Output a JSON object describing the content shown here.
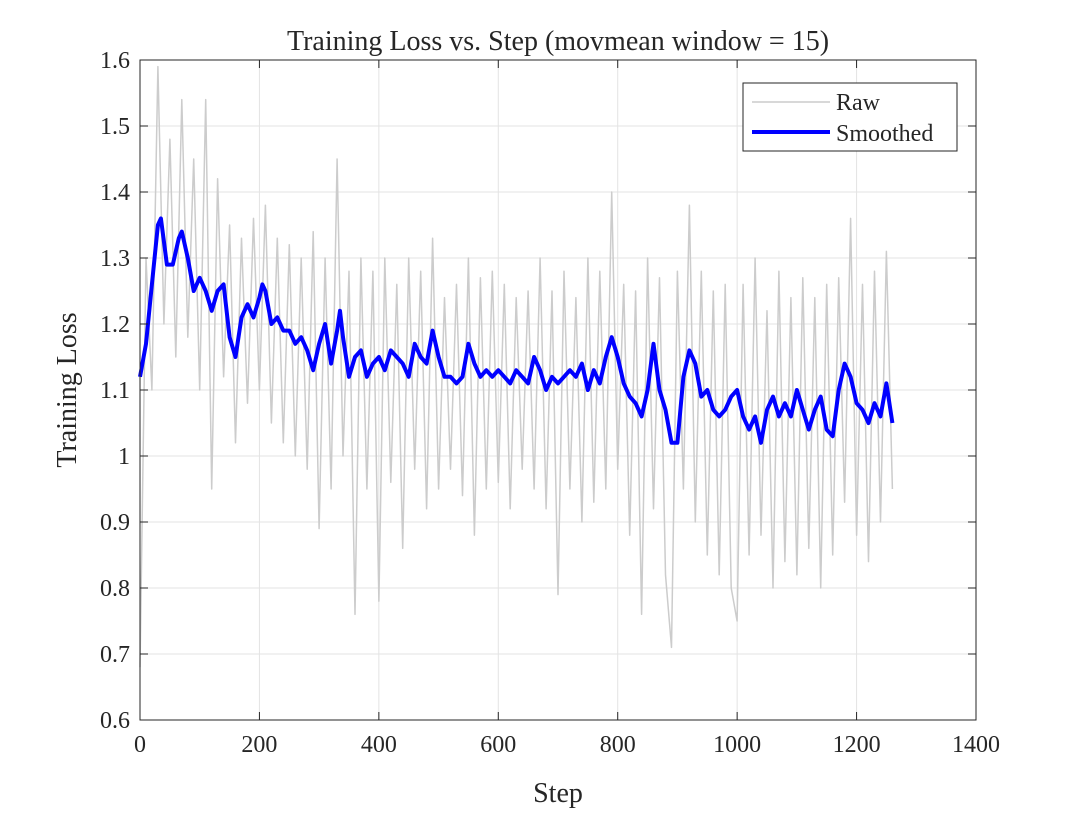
{
  "chart_data": {
    "type": "line",
    "title": "Training Loss vs. Step (movmean window = 15)",
    "xlabel": "Step",
    "ylabel": "Training Loss",
    "xlim": [
      0,
      1400
    ],
    "ylim": [
      0.6,
      1.6
    ],
    "xticks": [
      0,
      200,
      400,
      600,
      800,
      1000,
      1200,
      1400
    ],
    "yticks": [
      0.6,
      0.7,
      0.8,
      0.9,
      1,
      1.1,
      1.2,
      1.3,
      1.4,
      1.5,
      1.6
    ],
    "grid": true,
    "legend_placement": "top-right",
    "series": [
      {
        "name": "Raw",
        "color": "#cccccc",
        "x": [
          0,
          10,
          20,
          30,
          40,
          50,
          60,
          70,
          80,
          90,
          100,
          110,
          120,
          130,
          140,
          150,
          160,
          170,
          180,
          190,
          200,
          210,
          220,
          230,
          240,
          250,
          260,
          270,
          280,
          290,
          300,
          310,
          320,
          330,
          340,
          350,
          360,
          370,
          380,
          390,
          400,
          410,
          420,
          430,
          440,
          450,
          460,
          470,
          480,
          490,
          500,
          510,
          520,
          530,
          540,
          550,
          560,
          570,
          580,
          590,
          600,
          610,
          620,
          630,
          640,
          650,
          660,
          670,
          680,
          690,
          700,
          710,
          720,
          730,
          740,
          750,
          760,
          770,
          780,
          790,
          800,
          810,
          820,
          830,
          840,
          850,
          860,
          870,
          880,
          890,
          900,
          910,
          920,
          930,
          940,
          950,
          960,
          970,
          980,
          990,
          1000,
          1010,
          1020,
          1030,
          1040,
          1050,
          1060,
          1070,
          1080,
          1090,
          1100,
          1110,
          1120,
          1130,
          1140,
          1150,
          1160,
          1170,
          1180,
          1190,
          1200,
          1210,
          1220,
          1230,
          1240,
          1250,
          1260
        ],
        "y": [
          0.68,
          1.3,
          1.1,
          1.59,
          1.2,
          1.48,
          1.15,
          1.54,
          1.18,
          1.45,
          1.1,
          1.54,
          0.95,
          1.42,
          1.12,
          1.35,
          1.02,
          1.33,
          1.08,
          1.36,
          1.1,
          1.38,
          1.05,
          1.33,
          1.02,
          1.32,
          1.0,
          1.3,
          0.98,
          1.34,
          0.89,
          1.3,
          0.95,
          1.45,
          1.0,
          1.28,
          0.76,
          1.3,
          0.95,
          1.28,
          0.78,
          1.3,
          0.96,
          1.26,
          0.86,
          1.3,
          0.98,
          1.28,
          0.92,
          1.33,
          0.95,
          1.24,
          0.98,
          1.26,
          0.94,
          1.3,
          0.88,
          1.27,
          0.95,
          1.28,
          0.96,
          1.26,
          0.92,
          1.24,
          0.98,
          1.25,
          0.95,
          1.3,
          0.92,
          1.25,
          0.79,
          1.28,
          0.95,
          1.24,
          0.9,
          1.3,
          0.93,
          1.28,
          0.95,
          1.4,
          0.98,
          1.26,
          0.88,
          1.25,
          0.76,
          1.3,
          0.92,
          1.27,
          0.82,
          0.71,
          1.28,
          0.95,
          1.38,
          0.9,
          1.28,
          0.85,
          1.25,
          0.82,
          1.26,
          0.8,
          0.75,
          1.26,
          0.85,
          1.3,
          0.88,
          1.22,
          0.8,
          1.28,
          0.84,
          1.24,
          0.82,
          1.27,
          0.86,
          1.24,
          0.8,
          1.26,
          0.85,
          1.27,
          0.93,
          1.36,
          0.88,
          1.26,
          0.84,
          1.28,
          0.9,
          1.31,
          0.95
        ]
      },
      {
        "name": "Smoothed",
        "color": "#0000ff",
        "x": [
          0,
          10,
          20,
          30,
          35,
          45,
          55,
          65,
          70,
          80,
          90,
          100,
          110,
          120,
          130,
          140,
          150,
          160,
          170,
          180,
          190,
          200,
          205,
          210,
          220,
          230,
          240,
          250,
          260,
          270,
          280,
          290,
          300,
          310,
          320,
          330,
          335,
          340,
          350,
          360,
          370,
          380,
          390,
          400,
          410,
          420,
          430,
          440,
          450,
          460,
          470,
          480,
          490,
          500,
          510,
          520,
          530,
          540,
          550,
          560,
          570,
          580,
          590,
          600,
          610,
          620,
          630,
          640,
          650,
          660,
          670,
          680,
          690,
          700,
          710,
          720,
          730,
          740,
          750,
          760,
          770,
          780,
          790,
          800,
          810,
          820,
          830,
          840,
          850,
          860,
          870,
          880,
          890,
          900,
          910,
          920,
          930,
          940,
          950,
          960,
          970,
          980,
          990,
          1000,
          1010,
          1020,
          1030,
          1040,
          1050,
          1060,
          1070,
          1080,
          1090,
          1100,
          1110,
          1120,
          1130,
          1140,
          1150,
          1160,
          1170,
          1180,
          1190,
          1200,
          1210,
          1220,
          1230,
          1240,
          1250,
          1260
        ],
        "y": [
          1.12,
          1.17,
          1.26,
          1.35,
          1.36,
          1.29,
          1.29,
          1.33,
          1.34,
          1.3,
          1.25,
          1.27,
          1.25,
          1.22,
          1.25,
          1.26,
          1.18,
          1.15,
          1.21,
          1.23,
          1.21,
          1.24,
          1.26,
          1.25,
          1.2,
          1.21,
          1.19,
          1.19,
          1.17,
          1.18,
          1.16,
          1.13,
          1.17,
          1.2,
          1.14,
          1.19,
          1.22,
          1.18,
          1.12,
          1.15,
          1.16,
          1.12,
          1.14,
          1.15,
          1.13,
          1.16,
          1.15,
          1.14,
          1.12,
          1.17,
          1.15,
          1.14,
          1.19,
          1.15,
          1.12,
          1.12,
          1.11,
          1.12,
          1.17,
          1.14,
          1.12,
          1.13,
          1.12,
          1.13,
          1.12,
          1.11,
          1.13,
          1.12,
          1.11,
          1.15,
          1.13,
          1.1,
          1.12,
          1.11,
          1.12,
          1.13,
          1.12,
          1.14,
          1.1,
          1.13,
          1.11,
          1.15,
          1.18,
          1.15,
          1.11,
          1.09,
          1.08,
          1.06,
          1.1,
          1.17,
          1.1,
          1.07,
          1.02,
          1.02,
          1.12,
          1.16,
          1.14,
          1.09,
          1.1,
          1.07,
          1.06,
          1.07,
          1.09,
          1.1,
          1.06,
          1.04,
          1.06,
          1.02,
          1.07,
          1.09,
          1.06,
          1.08,
          1.06,
          1.1,
          1.07,
          1.04,
          1.07,
          1.09,
          1.04,
          1.03,
          1.1,
          1.14,
          1.12,
          1.08,
          1.07,
          1.05,
          1.08,
          1.06,
          1.11,
          1.05
        ]
      }
    ]
  }
}
